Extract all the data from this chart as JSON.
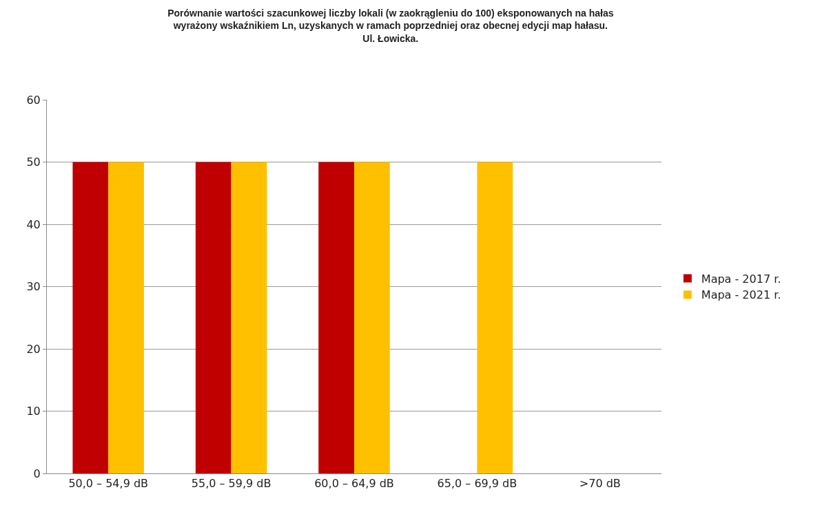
{
  "chart_data": {
    "type": "bar",
    "title": "Porównanie wartości szacunkowej liczby lokali (w zaokrągleniu do 100) eksponowanych na hałas\nwyrażony wskaźnikiem Ln, uzyskanych w ramach poprzedniej oraz obecnej edycji map hałasu.\nUl. Łowicka.",
    "categories": [
      "50,0 – 54,9 dB",
      "55,0 – 59,9 dB",
      "60,0 – 64,9 dB",
      "65,0 – 69,9 dB",
      ">70 dB"
    ],
    "series": [
      {
        "name": "Mapa - 2017 r.",
        "color": "#c00000",
        "values": [
          50,
          50,
          50,
          0,
          0
        ]
      },
      {
        "name": "Mapa - 2021 r.",
        "color": "#ffc000",
        "values": [
          50,
          50,
          50,
          50,
          0
        ]
      }
    ],
    "ylim": [
      0,
      60
    ],
    "yticks": [
      0,
      10,
      20,
      30,
      40,
      50,
      60
    ],
    "grid": "y",
    "legend": "right"
  }
}
